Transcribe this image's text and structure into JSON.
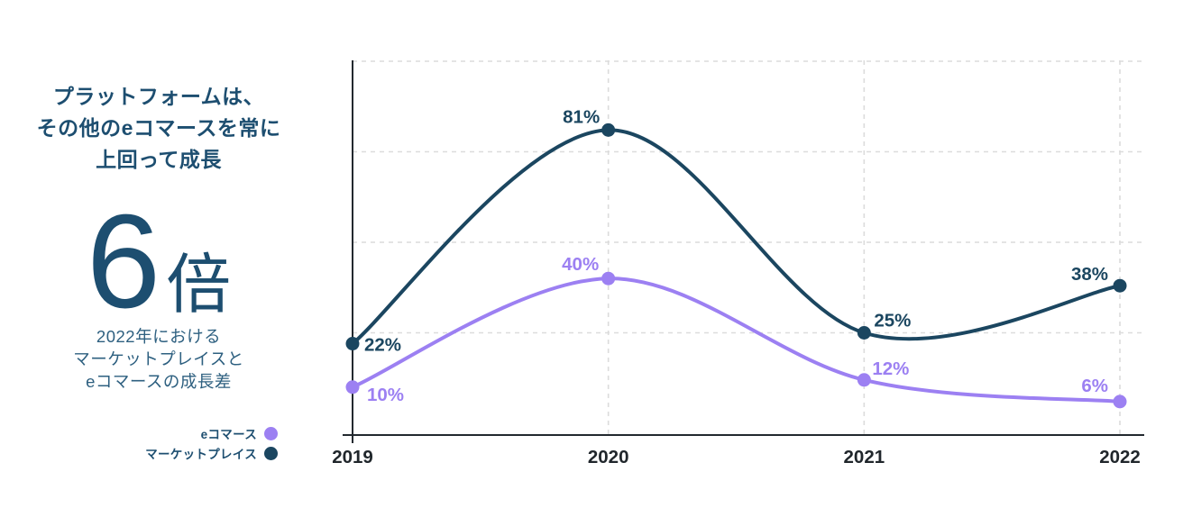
{
  "page": {
    "background": "#ffffff"
  },
  "sidebar": {
    "title_lines": [
      "プラットフォームは、",
      "その他のeコマースを常に",
      "上回って成長"
    ],
    "stat": {
      "number": "6",
      "unit": "倍"
    },
    "description_lines": [
      "2022年における",
      "マーケットプレイスと",
      "eコマースの成長差"
    ],
    "colors": {
      "title": "#1d4e70",
      "description": "#2e6080"
    }
  },
  "legend": {
    "items": [
      {
        "id": "ecommerce",
        "label": "eコマース",
        "color": "#9c80f2"
      },
      {
        "id": "marketplace",
        "label": "マーケットプレイス",
        "color": "#1b4660"
      }
    ]
  },
  "chart_data": {
    "type": "line",
    "curve": "smooth",
    "x": [
      "2019",
      "2020",
      "2021",
      "2022"
    ],
    "series": [
      {
        "id": "ecommerce",
        "name": "eコマース",
        "color": "#9c80f2",
        "values": [
          10,
          40,
          12,
          6
        ],
        "point_labels": [
          "10%",
          "40%",
          "12%",
          "6%"
        ]
      },
      {
        "id": "marketplace",
        "name": "マーケットプレイス",
        "color": "#1b4660",
        "values": [
          22,
          81,
          25,
          38
        ],
        "point_labels": [
          "22%",
          "81%",
          "25%",
          "38%"
        ]
      }
    ],
    "ylim": [
      0,
      100
    ],
    "grid": {
      "horizontal_values": [
        25,
        50,
        75,
        100
      ],
      "vertical_at_each_x": true,
      "style": "dashed"
    },
    "axis_color": "#23292f",
    "grid_color": "#dcdcdc",
    "tick_label_color": "#20262b",
    "legend_position": "bottom-left-outside"
  }
}
